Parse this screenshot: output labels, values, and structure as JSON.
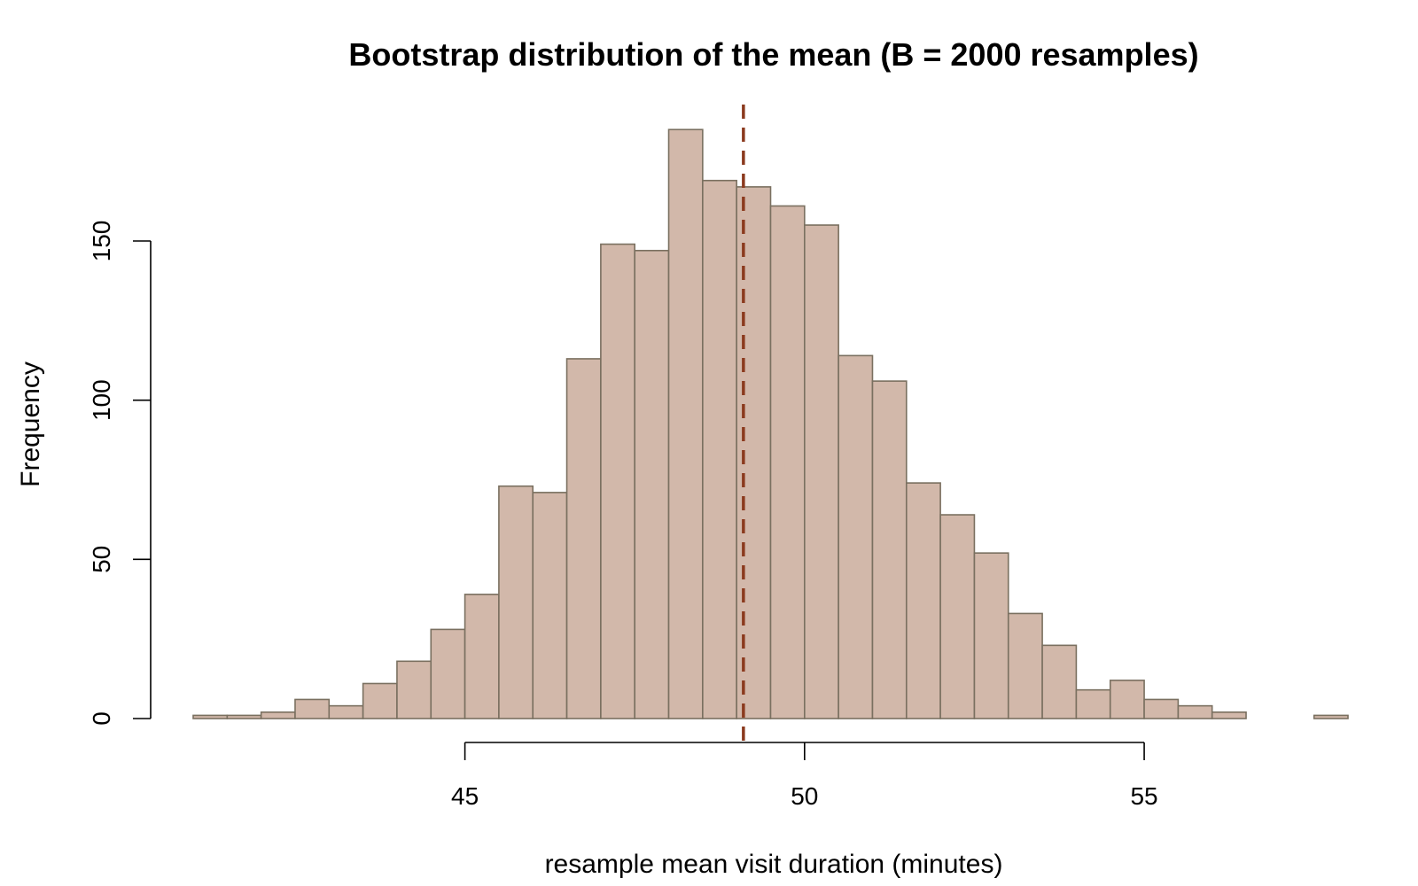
{
  "chart_data": {
    "type": "bar",
    "subtype": "histogram",
    "title": "Bootstrap distribution of the mean (B = 2000 resamples)",
    "xlabel": "resample mean visit duration (minutes)",
    "ylabel": "Frequency",
    "bin_width": 0.5,
    "bins_start": 41,
    "values": [
      1,
      1,
      2,
      6,
      4,
      11,
      18,
      28,
      39,
      73,
      71,
      113,
      149,
      147,
      185,
      169,
      167,
      161,
      155,
      114,
      106,
      74,
      64,
      52,
      33,
      23,
      9,
      12,
      6,
      4,
      2,
      0,
      0,
      1
    ],
    "xlim": [
      41,
      58
    ],
    "ylim": [
      0,
      185
    ],
    "x_ticks": [
      45,
      50,
      55
    ],
    "x_tick_labels": [
      "45",
      "50",
      "55"
    ],
    "y_ticks": [
      0,
      50,
      100,
      150
    ],
    "y_tick_labels": [
      "0",
      "50",
      "100",
      "150"
    ],
    "reference_line": {
      "x": 49.1,
      "style": "dashed",
      "color": "#8b3a1e"
    },
    "bar_fill": "#d2b8aa",
    "bar_stroke": "#7a7060",
    "grid": false,
    "legend": "none"
  }
}
